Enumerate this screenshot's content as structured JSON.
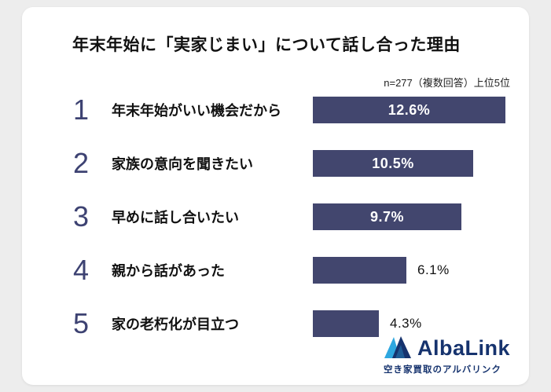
{
  "page": {
    "background_color": "#ededed",
    "card_color": "#ffffff"
  },
  "chart_data": {
    "type": "bar",
    "orientation": "horizontal",
    "title": "年末年始に「実家じまい」について話し合った理由",
    "note": "n=277（複数回答）上位5位",
    "categories": [
      "年末年始がいい機会だから",
      "家族の意向を聞きたい",
      "早めに話し合いたい",
      "親から話があった",
      "家の老朽化が目立つ"
    ],
    "ranks": [
      "1",
      "2",
      "3",
      "4",
      "5"
    ],
    "values": [
      12.6,
      10.5,
      9.7,
      6.1,
      4.3
    ],
    "value_labels": [
      "12.6%",
      "10.5%",
      "9.7%",
      "6.1%",
      "4.3%"
    ],
    "xlim": [
      0,
      12.6
    ],
    "grid": false,
    "legend": false,
    "bar_color": "#42466e",
    "rank_color": "#3d4272",
    "value_label_inside_color": "#ffffff",
    "value_label_outside_color": "#111111"
  },
  "footer": {
    "brand_name": "AlbaLink",
    "brand_tagline": "空き家買取のアルバリンク",
    "brand_color": "#16336e",
    "logo_colors": {
      "light": "#2ea7e0",
      "dark": "#16336e"
    }
  }
}
